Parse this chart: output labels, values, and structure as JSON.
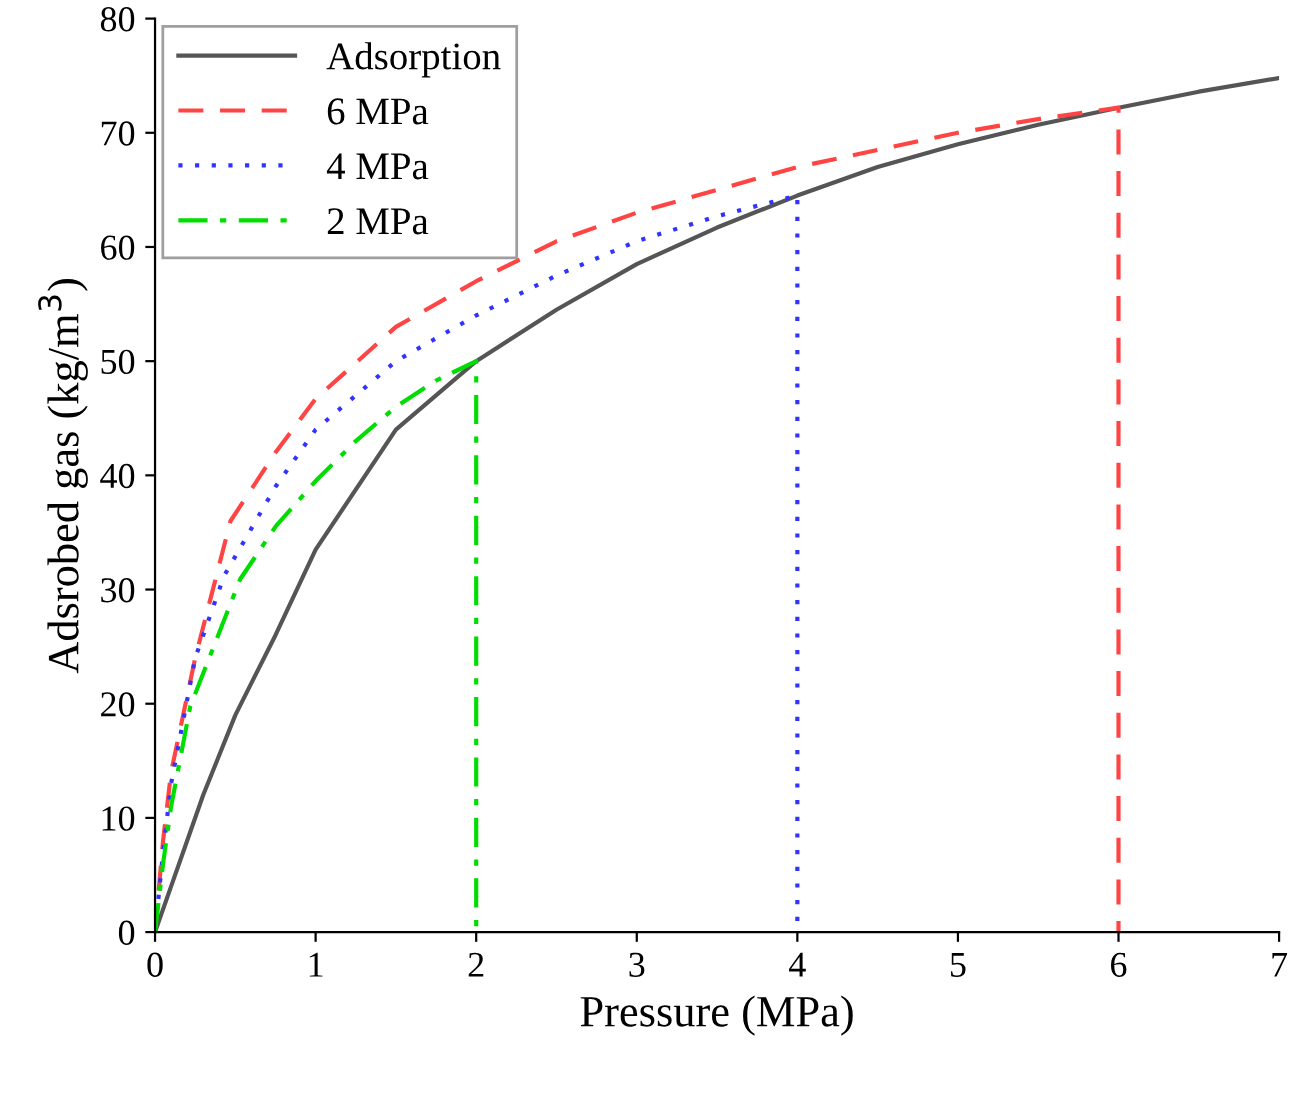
{
  "chart_data": {
    "type": "line",
    "xlabel": "Pressure (MPa)",
    "ylabel": "Adsrobed gas (kg/m$^{3}$)",
    "xlim": [
      0,
      7
    ],
    "ylim": [
      0,
      80
    ],
    "xticks": [
      0,
      1,
      2,
      3,
      4,
      5,
      6,
      7
    ],
    "yticks": [
      0,
      10,
      20,
      30,
      40,
      50,
      60,
      70,
      80
    ],
    "grid": false,
    "legend": "top left",
    "series": [
      {
        "name": "Adsorption",
        "color": "#555555",
        "line_style": "solid",
        "x": [
          0,
          0.1,
          0.2,
          0.3,
          0.5,
          0.75,
          1,
          1.5,
          2,
          2.5,
          3,
          3.5,
          4,
          4.5,
          5,
          5.5,
          6,
          6.5,
          7
        ],
        "values": [
          0,
          4,
          8,
          12,
          19,
          26,
          33.5,
          44,
          50,
          54.5,
          58.5,
          61.7,
          64.5,
          67,
          69,
          70.7,
          72.2,
          73.6,
          74.8
        ]
      },
      {
        "name": "6 MPa",
        "color": "#ff4444",
        "line_style": "dashed",
        "x": [
          0,
          0.05,
          0.1,
          0.25,
          0.47,
          0.75,
          1,
          1.5,
          2,
          2.5,
          3,
          3.5,
          4,
          4.5,
          5,
          5.5,
          6,
          6
        ],
        "values": [
          0,
          8,
          14,
          24,
          36,
          42,
          46.7,
          53,
          57,
          60.5,
          63,
          65,
          67,
          68.5,
          70,
          71.2,
          72.2,
          0
        ]
      },
      {
        "name": "4 MPa",
        "color": "#3333ff",
        "line_style": "dotted",
        "x": [
          0,
          0.05,
          0.1,
          0.25,
          0.43,
          0.75,
          1,
          1.5,
          2,
          2.5,
          3,
          3.5,
          4,
          4
        ],
        "values": [
          0,
          7,
          13,
          24,
          31.2,
          39,
          44,
          50,
          54,
          57.5,
          60.5,
          62.7,
          64.5,
          0
        ]
      },
      {
        "name": "2 MPa",
        "color": "#00dd00",
        "line_style": "dashdot",
        "x": [
          0,
          0.05,
          0.1,
          0.22,
          0.53,
          0.75,
          1,
          1.25,
          1.5,
          1.75,
          2,
          2
        ],
        "values": [
          0,
          6,
          11,
          19.8,
          30.9,
          35.5,
          39.5,
          43,
          46,
          48.3,
          50,
          0
        ]
      }
    ]
  }
}
